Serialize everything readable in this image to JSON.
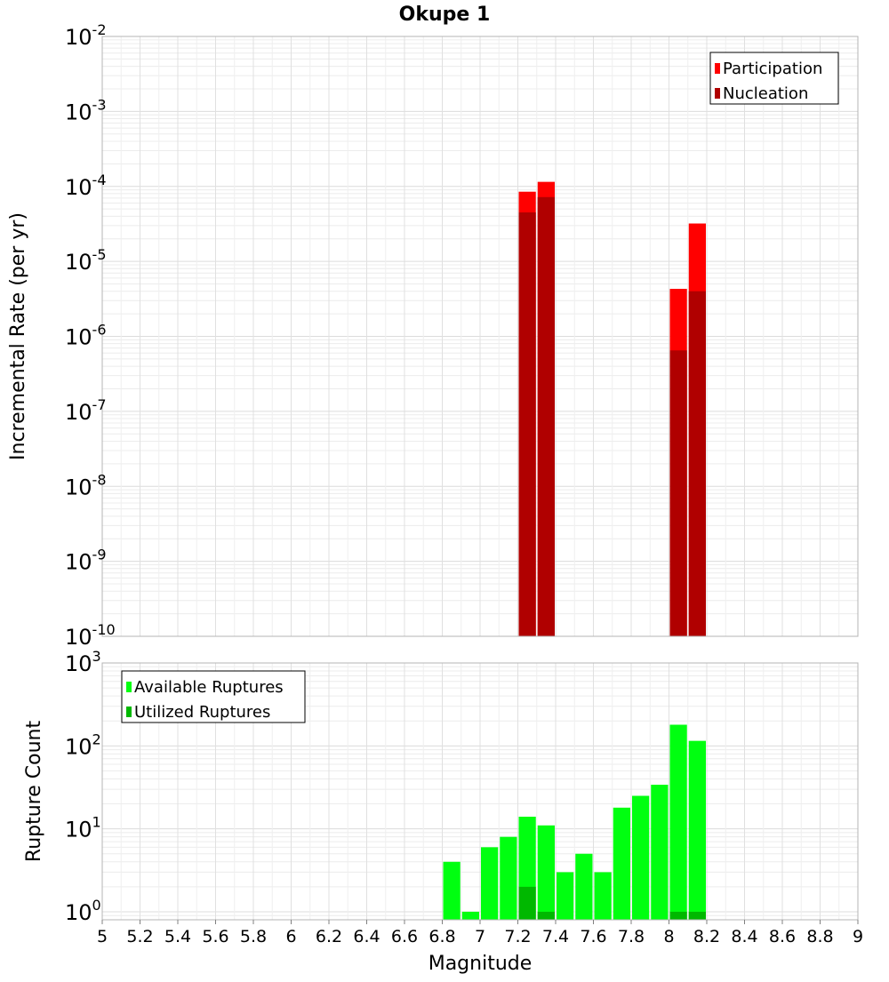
{
  "chart_data": [
    {
      "type": "bar",
      "title": "Okupe 1",
      "xlabel": "Magnitude",
      "ylabel": "Incremental Rate (per yr)",
      "yscale": "log",
      "ylim": [
        1e-10,
        0.01
      ],
      "y_tick_exponents": [
        "-10",
        "-9",
        "-8",
        "-7",
        "-6",
        "-5",
        "-4",
        "-3",
        "-2"
      ],
      "y_tick_base": "10",
      "grid": true,
      "legend_position": "top-right",
      "series": [
        {
          "name": "Participation",
          "color": "#ff0000",
          "x": [
            7.25,
            7.35,
            8.05,
            8.15
          ],
          "values": [
            8.5e-05,
            0.000115,
            4.3e-06,
            3.2e-05
          ]
        },
        {
          "name": "Nucleation",
          "color": "#b00000",
          "x": [
            7.25,
            7.35,
            8.05,
            8.15
          ],
          "values": [
            4.5e-05,
            7.2e-05,
            6.5e-07,
            4e-06
          ]
        }
      ]
    },
    {
      "type": "bar",
      "xlabel": "Magnitude",
      "ylabel": "Rupture Count",
      "yscale": "log",
      "ylim": [
        0.8,
        1000
      ],
      "y_tick_exponents": [
        "0",
        "1",
        "2",
        "3"
      ],
      "y_tick_base": "10",
      "grid": true,
      "legend_position": "top-left",
      "xlim": [
        5,
        9
      ],
      "x_ticks": [
        "5",
        "5.2",
        "5.4",
        "5.6",
        "5.8",
        "6",
        "6.2",
        "6.4",
        "6.6",
        "6.8",
        "7",
        "7.2",
        "7.4",
        "7.6",
        "7.8",
        "8",
        "8.2",
        "8.4",
        "8.6",
        "8.8",
        "9"
      ],
      "series": [
        {
          "name": "Available Ruptures",
          "color": "#00ff10",
          "x": [
            6.85,
            6.95,
            7.05,
            7.15,
            7.25,
            7.35,
            7.45,
            7.55,
            7.65,
            7.75,
            7.85,
            7.95,
            8.05,
            8.15
          ],
          "values": [
            4,
            1,
            6,
            8,
            14,
            11,
            3,
            5,
            3,
            18,
            25,
            34,
            180,
            115
          ]
        },
        {
          "name": "Utilized Ruptures",
          "color": "#00b800",
          "x": [
            7.25,
            7.35,
            8.05,
            8.15
          ],
          "values": [
            2,
            1,
            1,
            1
          ]
        }
      ]
    }
  ]
}
